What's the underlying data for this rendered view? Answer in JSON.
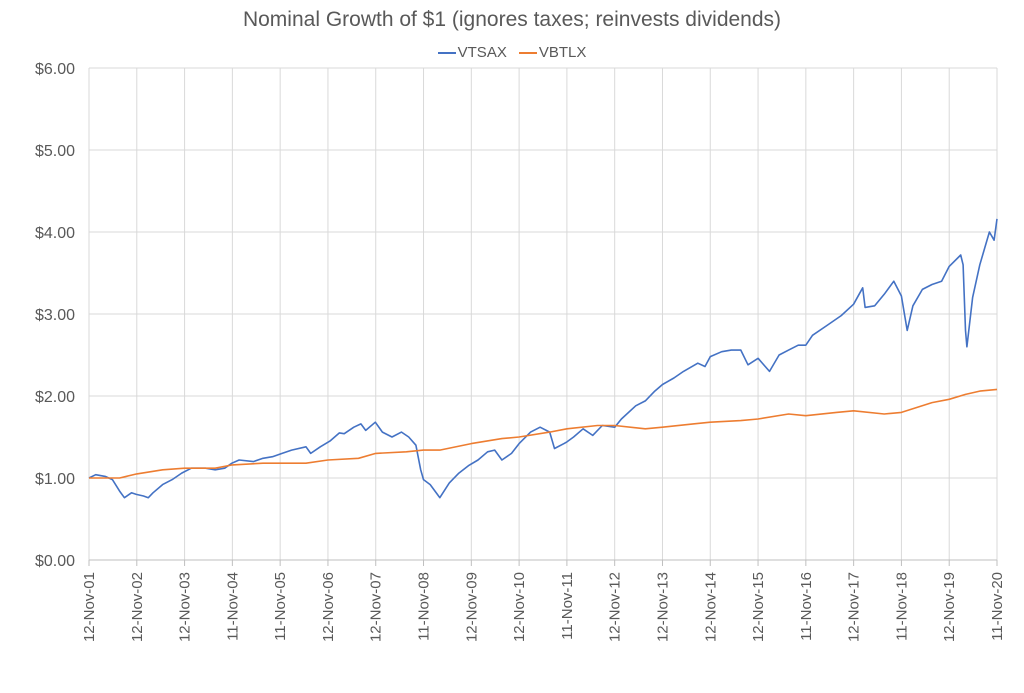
{
  "chart_data": {
    "type": "line",
    "title": "Nominal Growth of $1 (ignores taxes; reinvests dividends)",
    "xlabel": "",
    "ylabel": "",
    "ylim": [
      0,
      6
    ],
    "y_ticks": [
      "$0.00",
      "$1.00",
      "$2.00",
      "$3.00",
      "$4.00",
      "$5.00",
      "$6.00"
    ],
    "x_ticks": [
      "12-Nov-01",
      "12-Nov-02",
      "12-Nov-03",
      "11-Nov-04",
      "11-Nov-05",
      "12-Nov-06",
      "12-Nov-07",
      "11-Nov-08",
      "12-Nov-09",
      "12-Nov-10",
      "11-Nov-11",
      "12-Nov-12",
      "12-Nov-13",
      "12-Nov-14",
      "12-Nov-15",
      "11-Nov-16",
      "12-Nov-17",
      "11-Nov-18",
      "12-Nov-19",
      "11-Nov-20"
    ],
    "grid": "vertical and horizontal",
    "legend_position": "top",
    "series": [
      {
        "name": "VTSAX",
        "color": "#4472C4",
        "values": [
          [
            2001.86,
            1.0
          ],
          [
            2002.0,
            1.04
          ],
          [
            2002.2,
            1.02
          ],
          [
            2002.35,
            0.98
          ],
          [
            2002.5,
            0.84
          ],
          [
            2002.6,
            0.76
          ],
          [
            2002.75,
            0.82
          ],
          [
            2002.85,
            0.8
          ],
          [
            2003.0,
            0.78
          ],
          [
            2003.1,
            0.76
          ],
          [
            2003.2,
            0.82
          ],
          [
            2003.4,
            0.92
          ],
          [
            2003.6,
            0.98
          ],
          [
            2003.8,
            1.06
          ],
          [
            2004.0,
            1.12
          ],
          [
            2004.3,
            1.12
          ],
          [
            2004.5,
            1.1
          ],
          [
            2004.7,
            1.12
          ],
          [
            2004.85,
            1.18
          ],
          [
            2005.0,
            1.22
          ],
          [
            2005.3,
            1.2
          ],
          [
            2005.5,
            1.24
          ],
          [
            2005.7,
            1.26
          ],
          [
            2005.9,
            1.3
          ],
          [
            2006.1,
            1.34
          ],
          [
            2006.4,
            1.38
          ],
          [
            2006.5,
            1.3
          ],
          [
            2006.7,
            1.38
          ],
          [
            2006.9,
            1.45
          ],
          [
            2007.1,
            1.55
          ],
          [
            2007.2,
            1.54
          ],
          [
            2007.4,
            1.62
          ],
          [
            2007.55,
            1.66
          ],
          [
            2007.65,
            1.58
          ],
          [
            2007.85,
            1.68
          ],
          [
            2008.0,
            1.56
          ],
          [
            2008.2,
            1.5
          ],
          [
            2008.4,
            1.56
          ],
          [
            2008.55,
            1.5
          ],
          [
            2008.7,
            1.4
          ],
          [
            2008.8,
            1.1
          ],
          [
            2008.86,
            0.98
          ],
          [
            2009.0,
            0.92
          ],
          [
            2009.15,
            0.8
          ],
          [
            2009.2,
            0.76
          ],
          [
            2009.4,
            0.94
          ],
          [
            2009.6,
            1.06
          ],
          [
            2009.8,
            1.15
          ],
          [
            2010.0,
            1.22
          ],
          [
            2010.2,
            1.32
          ],
          [
            2010.35,
            1.34
          ],
          [
            2010.5,
            1.22
          ],
          [
            2010.7,
            1.3
          ],
          [
            2010.86,
            1.42
          ],
          [
            2011.1,
            1.56
          ],
          [
            2011.3,
            1.62
          ],
          [
            2011.5,
            1.56
          ],
          [
            2011.6,
            1.36
          ],
          [
            2011.8,
            1.42
          ],
          [
            2011.86,
            1.44
          ],
          [
            2012.0,
            1.5
          ],
          [
            2012.2,
            1.6
          ],
          [
            2012.4,
            1.52
          ],
          [
            2012.6,
            1.64
          ],
          [
            2012.86,
            1.62
          ],
          [
            2013.0,
            1.72
          ],
          [
            2013.3,
            1.88
          ],
          [
            2013.5,
            1.94
          ],
          [
            2013.7,
            2.06
          ],
          [
            2013.86,
            2.14
          ],
          [
            2014.1,
            2.22
          ],
          [
            2014.3,
            2.3
          ],
          [
            2014.6,
            2.4
          ],
          [
            2014.75,
            2.36
          ],
          [
            2014.86,
            2.48
          ],
          [
            2015.1,
            2.54
          ],
          [
            2015.3,
            2.56
          ],
          [
            2015.5,
            2.56
          ],
          [
            2015.65,
            2.38
          ],
          [
            2015.86,
            2.46
          ],
          [
            2016.1,
            2.3
          ],
          [
            2016.3,
            2.5
          ],
          [
            2016.5,
            2.56
          ],
          [
            2016.7,
            2.62
          ],
          [
            2016.86,
            2.62
          ],
          [
            2017.0,
            2.74
          ],
          [
            2017.3,
            2.86
          ],
          [
            2017.6,
            2.98
          ],
          [
            2017.86,
            3.12
          ],
          [
            2018.05,
            3.32
          ],
          [
            2018.1,
            3.08
          ],
          [
            2018.3,
            3.1
          ],
          [
            2018.5,
            3.24
          ],
          [
            2018.7,
            3.4
          ],
          [
            2018.86,
            3.22
          ],
          [
            2018.98,
            2.8
          ],
          [
            2019.1,
            3.1
          ],
          [
            2019.3,
            3.3
          ],
          [
            2019.5,
            3.36
          ],
          [
            2019.7,
            3.4
          ],
          [
            2019.86,
            3.58
          ],
          [
            2020.1,
            3.72
          ],
          [
            2020.15,
            3.6
          ],
          [
            2020.2,
            2.8
          ],
          [
            2020.23,
            2.6
          ],
          [
            2020.35,
            3.2
          ],
          [
            2020.5,
            3.6
          ],
          [
            2020.6,
            3.8
          ],
          [
            2020.7,
            4.0
          ],
          [
            2020.8,
            3.9
          ],
          [
            2020.86,
            4.16
          ]
        ]
      },
      {
        "name": "VBTLX",
        "color": "#ED7D31",
        "values": [
          [
            2001.86,
            1.0
          ],
          [
            2002.5,
            1.0
          ],
          [
            2002.86,
            1.05
          ],
          [
            2003.4,
            1.1
          ],
          [
            2003.86,
            1.12
          ],
          [
            2004.5,
            1.12
          ],
          [
            2004.86,
            1.16
          ],
          [
            2005.5,
            1.18
          ],
          [
            2005.86,
            1.18
          ],
          [
            2006.4,
            1.18
          ],
          [
            2006.86,
            1.22
          ],
          [
            2007.5,
            1.24
          ],
          [
            2007.86,
            1.3
          ],
          [
            2008.5,
            1.32
          ],
          [
            2008.86,
            1.34
          ],
          [
            2009.2,
            1.34
          ],
          [
            2009.86,
            1.42
          ],
          [
            2010.5,
            1.48
          ],
          [
            2010.86,
            1.5
          ],
          [
            2011.5,
            1.56
          ],
          [
            2011.86,
            1.6
          ],
          [
            2012.5,
            1.64
          ],
          [
            2012.86,
            1.64
          ],
          [
            2013.5,
            1.6
          ],
          [
            2013.86,
            1.62
          ],
          [
            2014.5,
            1.66
          ],
          [
            2014.86,
            1.68
          ],
          [
            2015.5,
            1.7
          ],
          [
            2015.86,
            1.72
          ],
          [
            2016.5,
            1.78
          ],
          [
            2016.86,
            1.76
          ],
          [
            2017.5,
            1.8
          ],
          [
            2017.86,
            1.82
          ],
          [
            2018.5,
            1.78
          ],
          [
            2018.86,
            1.8
          ],
          [
            2019.5,
            1.92
          ],
          [
            2019.86,
            1.96
          ],
          [
            2020.2,
            2.02
          ],
          [
            2020.5,
            2.06
          ],
          [
            2020.86,
            2.08
          ]
        ]
      }
    ]
  }
}
